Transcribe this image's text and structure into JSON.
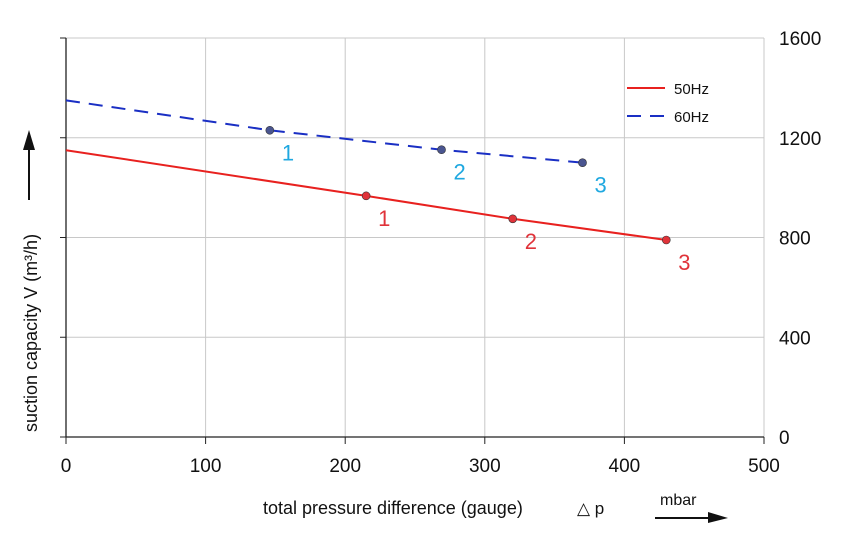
{
  "chart_data": {
    "type": "line",
    "xlabel": "total pressure difference (gauge)",
    "xlabel_symbol": "△ p",
    "xunit": "mbar",
    "ylabel": "suction capacity V (m³/h)",
    "xlim": [
      0,
      500
    ],
    "ylim": [
      0,
      1600
    ],
    "xticks": [
      0,
      100,
      200,
      300,
      400,
      500
    ],
    "yticks": [
      0,
      400,
      800,
      1200,
      1600
    ],
    "grid": true,
    "legend_position": "top-right",
    "series": [
      {
        "name": "50Hz",
        "color": "#e8211f",
        "style": "solid",
        "x": [
          0,
          215,
          320,
          430
        ],
        "y": [
          1150,
          967,
          875,
          790
        ],
        "markers": [
          {
            "label": "1",
            "x": 215,
            "y": 967
          },
          {
            "label": "2",
            "x": 320,
            "y": 875
          },
          {
            "label": "3",
            "x": 430,
            "y": 790
          }
        ],
        "marker_label_color": "#e0333a"
      },
      {
        "name": "60Hz",
        "color": "#1a2fc4",
        "style": "dashed",
        "x": [
          0,
          146,
          269,
          370
        ],
        "y": [
          1350,
          1230,
          1152,
          1100
        ],
        "markers": [
          {
            "label": "1",
            "x": 146,
            "y": 1230
          },
          {
            "label": "2",
            "x": 269,
            "y": 1152
          },
          {
            "label": "3",
            "x": 370,
            "y": 1100
          }
        ],
        "marker_label_color": "#1fa8e0"
      }
    ]
  }
}
